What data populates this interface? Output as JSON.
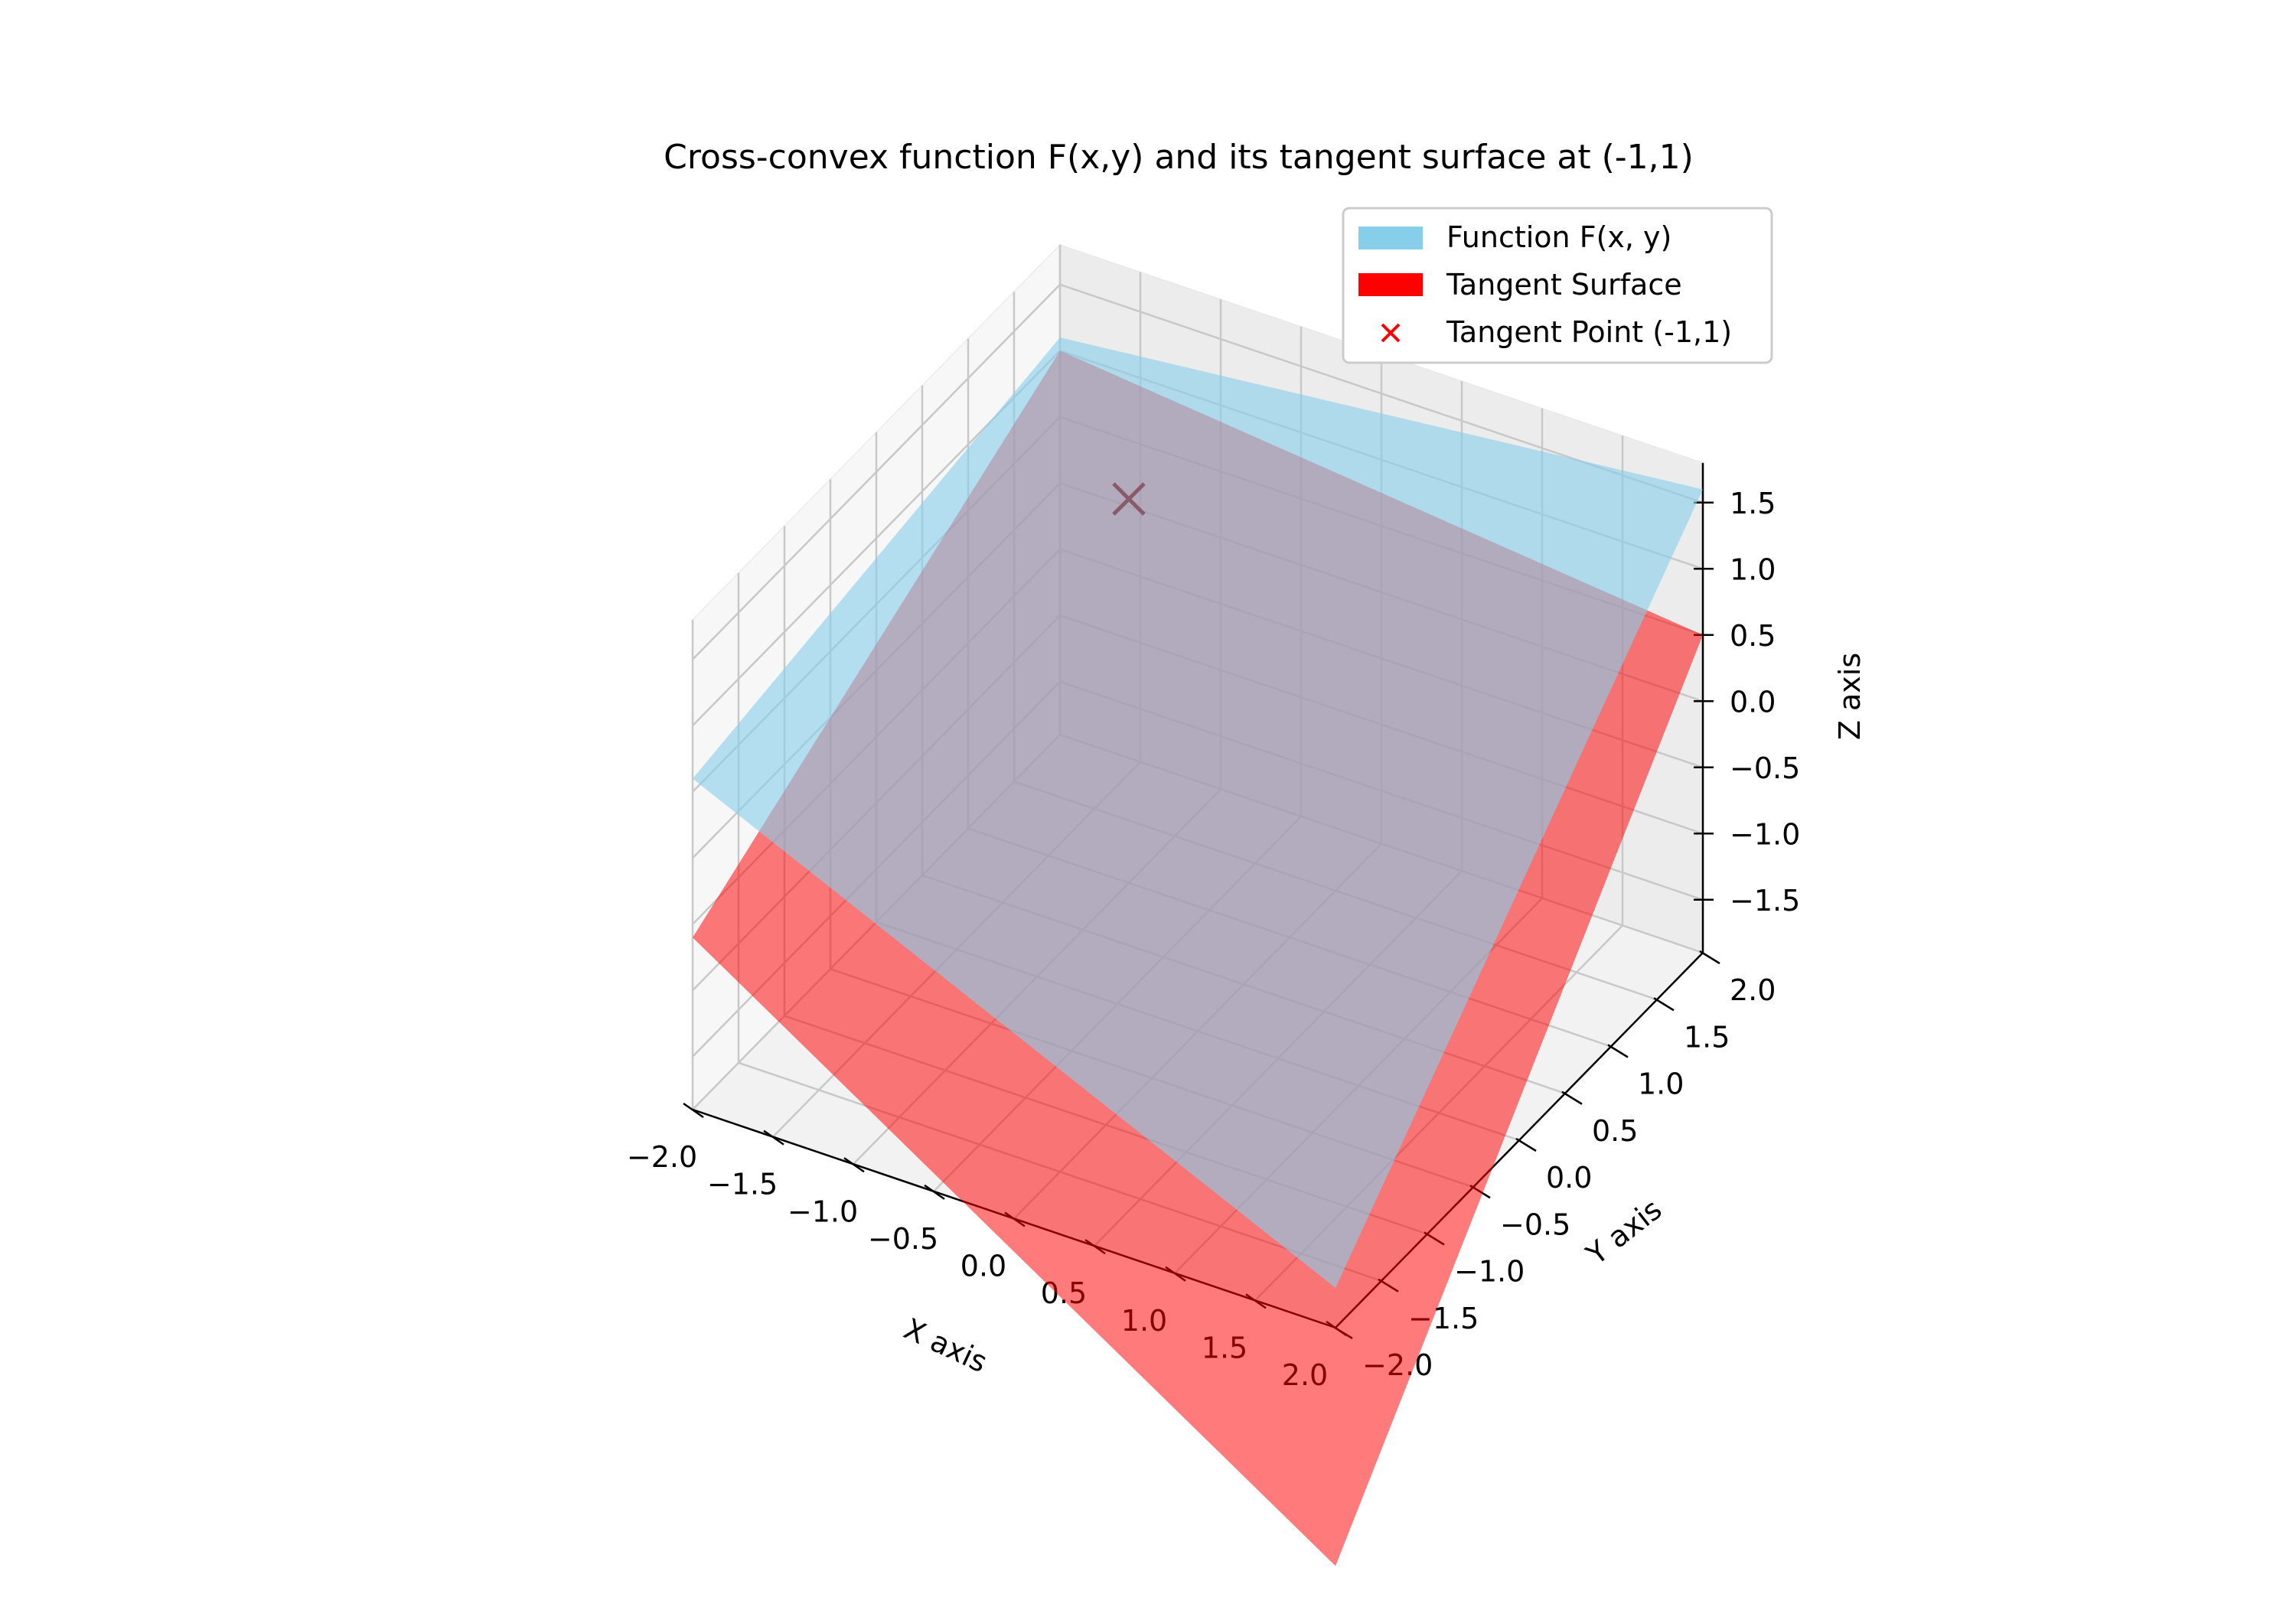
{
  "chart_data": {
    "type": "surface3d",
    "title": "Cross-convex function F(x,y) and its tangent surface at (-1,1)",
    "xlabel": "X axis",
    "ylabel": "Y axis",
    "zlabel": "Z axis",
    "xlim": [
      -2.0,
      2.0
    ],
    "ylim": [
      -2.0,
      2.0
    ],
    "zlim": [
      -1.9,
      1.8
    ],
    "grid": true,
    "legend_position": "top-right",
    "x_ticks": [
      "−2.0",
      "−1.5",
      "−1.0",
      "−0.5",
      "0.0",
      "0.5",
      "1.0",
      "1.5",
      "2.0"
    ],
    "y_ticks": [
      "−2.0",
      "−1.5",
      "−1.0",
      "−0.5",
      "0.0",
      "0.5",
      "1.0",
      "1.5",
      "2.0"
    ],
    "z_ticks": [
      "−1.5",
      "−1.0",
      "−0.5",
      "0.0",
      "0.5",
      "1.0",
      "1.5"
    ],
    "x_tick_values": [
      -2.0,
      -1.5,
      -1.0,
      -0.5,
      0.0,
      0.5,
      1.0,
      1.5,
      2.0
    ],
    "y_tick_values": [
      -2.0,
      -1.5,
      -1.0,
      -0.5,
      0.0,
      0.5,
      1.0,
      1.5,
      2.0
    ],
    "z_tick_values": [
      -1.5,
      -1.0,
      -0.5,
      0.0,
      0.5,
      1.0,
      1.5
    ],
    "series": [
      {
        "name": "Function F(x, y)",
        "kind": "surface",
        "color": "#87CEEB",
        "corners": [
          {
            "x": -2,
            "y": -2,
            "z": 0.6
          },
          {
            "x": 2,
            "y": -2,
            "z": -1.6
          },
          {
            "x": 2,
            "y": 2,
            "z": 1.6
          },
          {
            "x": -2,
            "y": 2,
            "z": 1.1
          }
        ]
      },
      {
        "name": "Tangent Surface",
        "kind": "surface",
        "color": "#FF0000",
        "corners": [
          {
            "x": -2,
            "y": -2,
            "z": -0.6
          },
          {
            "x": 2,
            "y": -2,
            "z": -3.7
          },
          {
            "x": 2,
            "y": 2,
            "z": 0.5
          },
          {
            "x": -2,
            "y": 2,
            "z": 1.0
          }
        ]
      },
      {
        "name": "Tangent Point (-1,1)",
        "kind": "point",
        "marker": "x",
        "color": "#FF0000",
        "x": -1,
        "y": 1,
        "z": 1.0
      }
    ]
  }
}
